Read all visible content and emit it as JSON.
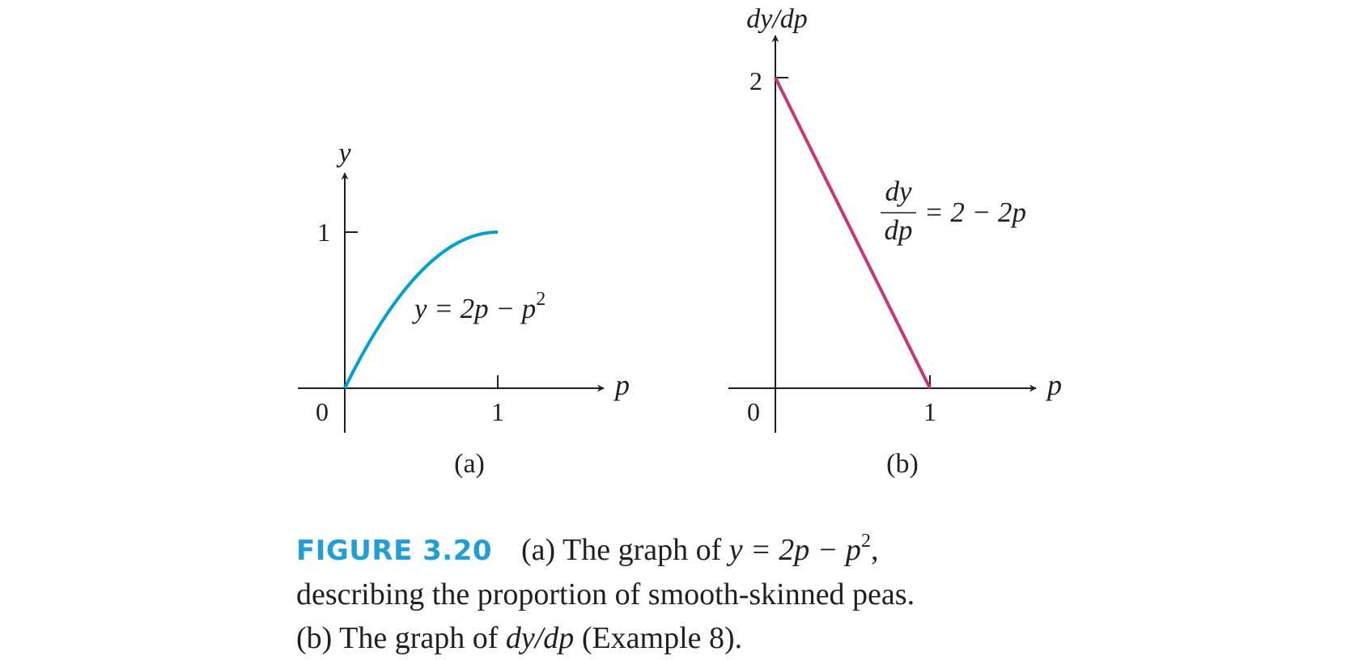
{
  "chart_data": [
    {
      "type": "line",
      "panel": "(a)",
      "xlabel": "p",
      "ylabel": "y",
      "origin_label": "0",
      "x_ticks": [
        "1"
      ],
      "y_ticks": [
        "1"
      ],
      "xlim": [
        0,
        1
      ],
      "ylim": [
        0,
        1
      ],
      "series": [
        {
          "label_lhs": "y = 2p − p",
          "label_exp": "2",
          "color": "#009fd7",
          "x": [
            0,
            0.1,
            0.2,
            0.3,
            0.4,
            0.5,
            0.6,
            0.7,
            0.8,
            0.9,
            1.0
          ],
          "y": [
            0,
            0.19,
            0.36,
            0.51,
            0.64,
            0.75,
            0.84,
            0.91,
            0.96,
            0.99,
            1.0
          ]
        }
      ],
      "grid": false
    },
    {
      "type": "line",
      "panel": "(b)",
      "xlabel": "p",
      "ylabel": "dy/dp",
      "origin_label": "0",
      "x_ticks": [
        "1"
      ],
      "y_ticks": [
        "2"
      ],
      "xlim": [
        0,
        1
      ],
      "ylim": [
        0,
        2
      ],
      "series": [
        {
          "label_num": "dy",
          "label_den": "dp",
          "label_rhs": "= 2 − 2p",
          "color": "#c8367a",
          "x": [
            0,
            1
          ],
          "y": [
            2,
            0
          ]
        }
      ],
      "grid": false
    }
  ],
  "caption": {
    "label": "FIGURE 3.20",
    "line1_pre": "(a) The graph of ",
    "line1_math": "y = 2p − p",
    "line1_exp": "2",
    "line1_post": ",",
    "line2": "describing the proportion of smooth-skinned peas.",
    "line3_pre": "(b) The graph of ",
    "line3_math": "dy/dp",
    "line3_post": " (Example 8)."
  }
}
